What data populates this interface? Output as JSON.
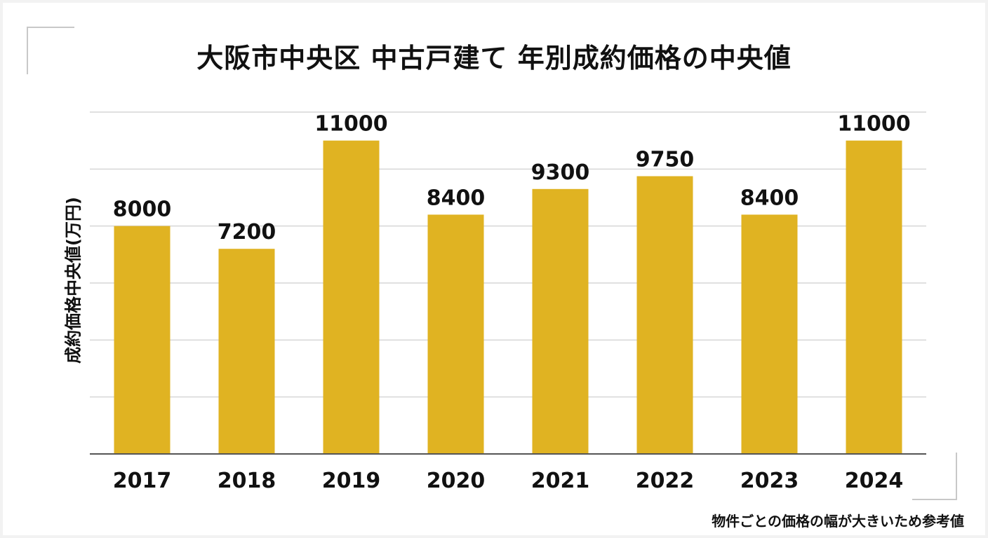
{
  "title": "大阪市中央区 中古戸建て 年別成約価格の中央値",
  "note": "物件ごとの価格の幅が大きいため参考値",
  "colors": {
    "bar": "#E0B322",
    "grid": "#d6d6d6",
    "axis": "#555555",
    "background": "#ffffff"
  },
  "chart_data": {
    "type": "bar",
    "categories": [
      "2017",
      "2018",
      "2019",
      "2020",
      "2021",
      "2022",
      "2023",
      "2024"
    ],
    "values": [
      8000,
      7200,
      11000,
      8400,
      9300,
      9750,
      8400,
      11000
    ],
    "title": "大阪市中央区 中古戸建て 年別成約価格の中央値",
    "xlabel": "",
    "ylabel": "成約価格中央値(万円)",
    "ylim": [
      0,
      12000
    ],
    "grid": true,
    "legend": "none"
  }
}
